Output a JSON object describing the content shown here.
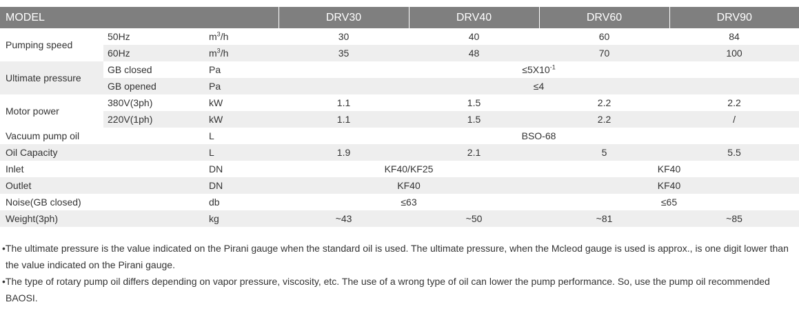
{
  "table": {
    "header": {
      "model": "MODEL",
      "drv30": "DRV30",
      "drv40": "DRV40",
      "drv60": "DRV60",
      "drv90": "DRV90"
    },
    "pumping_speed": {
      "label": "Pumping speed",
      "row50": {
        "sub": "50Hz",
        "unit_base": "m",
        "unit_sup": "3",
        "unit_tail": "/h",
        "v30": "30",
        "v40": "40",
        "v60": "60",
        "v90": "84"
      },
      "row60": {
        "sub": "60Hz",
        "unit_base": "m",
        "unit_sup": "3",
        "unit_tail": "/h",
        "v30": "35",
        "v40": "48",
        "v60": "70",
        "v90": "100"
      }
    },
    "ultimate_pressure": {
      "label": "Ultimate pressure",
      "closed": {
        "sub": "GB closed",
        "unit": "Pa",
        "value_base": "≤5X10",
        "value_sup": "-1"
      },
      "opened": {
        "sub": "GB opened",
        "unit": "Pa",
        "value": "≤4"
      }
    },
    "motor_power": {
      "label": "Motor power",
      "row380": {
        "sub": "380V(3ph)",
        "unit": "kW",
        "v30": "1.1",
        "v40": "1.5",
        "v60": "2.2",
        "v90": "2.2"
      },
      "row220": {
        "sub": "220V(1ph)",
        "unit": "kW",
        "v30": "1.1",
        "v40": "1.5",
        "v60": "2.2",
        "v90": "/"
      }
    },
    "vacuum_oil": {
      "label": "Vacuum pump oil",
      "unit": "L",
      "value": "BSO-68"
    },
    "oil_capacity": {
      "label": "Oil Capacity",
      "unit": "L",
      "v30": "1.9",
      "v40": "2.1",
      "v60": "5",
      "v90": "5.5"
    },
    "inlet": {
      "label": "Inlet",
      "unit": "DN",
      "v_left": "KF40/KF25",
      "v_right": "KF40"
    },
    "outlet": {
      "label": "Outlet",
      "unit": "DN",
      "v_left": "KF40",
      "v_right": "KF40"
    },
    "noise": {
      "label": "Noise(GB closed)",
      "unit": "db",
      "v_left": "≤63",
      "v_right": "≤65"
    },
    "weight": {
      "label": "Weight(3ph)",
      "unit": "kg",
      "v30": "~43",
      "v40": "~50",
      "v60": "~81",
      "v90": "~85"
    }
  },
  "notes": [
    "•The ultimate pressure is the value indicated on the Pirani gauge when the standard oil is used. The ultimate pressure, when the Mcleod gauge is used is approx., is one digit lower than the value indicated on the Pirani gauge.",
    "•The type of rotary pump oil differs depending on vapor pressure, viscosity, etc. The use of a wrong type of oil can lower the pump performance. So, use the pump oil recommended BAOSI."
  ]
}
